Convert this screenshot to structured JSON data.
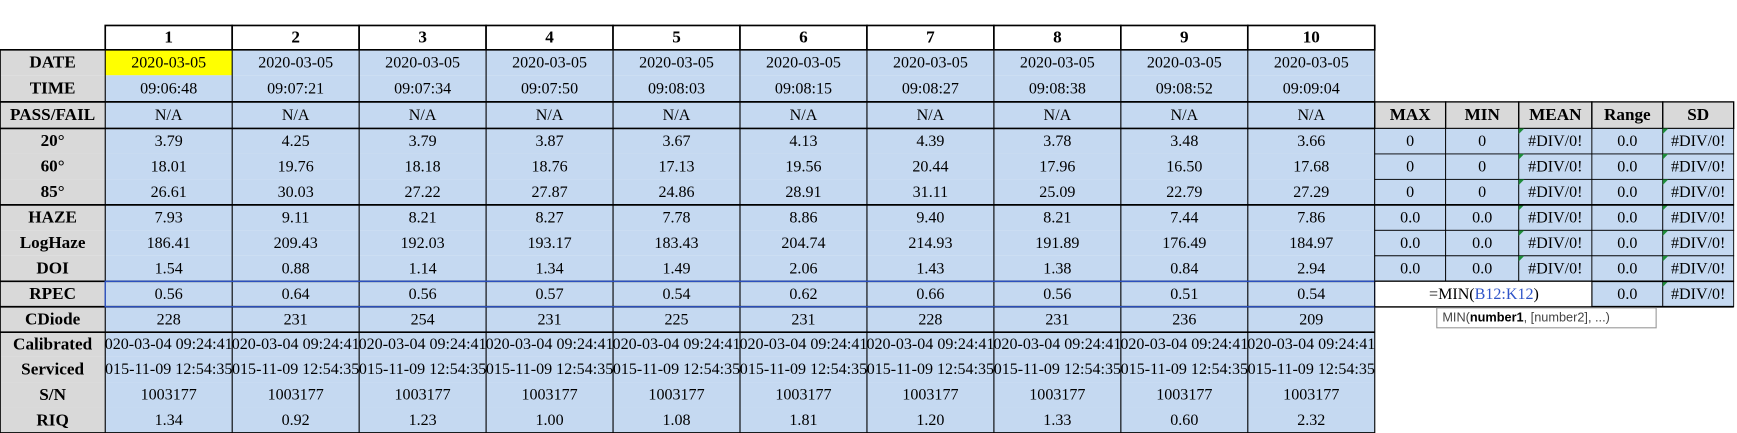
{
  "columns": [
    "1",
    "2",
    "3",
    "4",
    "5",
    "6",
    "7",
    "8",
    "9",
    "10"
  ],
  "rows": [
    {
      "label": "DATE",
      "cells": [
        "2020-03-05",
        "2020-03-05",
        "2020-03-05",
        "2020-03-05",
        "2020-03-05",
        "2020-03-05",
        "2020-03-05",
        "2020-03-05",
        "2020-03-05",
        "2020-03-05"
      ]
    },
    {
      "label": "TIME",
      "cells": [
        "09:06:48",
        "09:07:21",
        "09:07:34",
        "09:07:50",
        "09:08:03",
        "09:08:15",
        "09:08:27",
        "09:08:38",
        "09:08:52",
        "09:09:04"
      ]
    },
    {
      "label": "PASS/FAIL",
      "cells": [
        "N/A",
        "N/A",
        "N/A",
        "N/A",
        "N/A",
        "N/A",
        "N/A",
        "N/A",
        "N/A",
        "N/A"
      ]
    },
    {
      "label": "20°",
      "cells": [
        "3.79",
        "4.25",
        "3.79",
        "3.87",
        "3.67",
        "4.13",
        "4.39",
        "3.78",
        "3.48",
        "3.66"
      ]
    },
    {
      "label": "60°",
      "cells": [
        "18.01",
        "19.76",
        "18.18",
        "18.76",
        "17.13",
        "19.56",
        "20.44",
        "17.96",
        "16.50",
        "17.68"
      ]
    },
    {
      "label": "85°",
      "cells": [
        "26.61",
        "30.03",
        "27.22",
        "27.87",
        "24.86",
        "28.91",
        "31.11",
        "25.09",
        "22.79",
        "27.29"
      ]
    },
    {
      "label": "HAZE",
      "cells": [
        "7.93",
        "9.11",
        "8.21",
        "8.27",
        "7.78",
        "8.86",
        "9.40",
        "8.21",
        "7.44",
        "7.86"
      ]
    },
    {
      "label": "LogHaze",
      "cells": [
        "186.41",
        "209.43",
        "192.03",
        "193.17",
        "183.43",
        "204.74",
        "214.93",
        "191.89",
        "176.49",
        "184.97"
      ]
    },
    {
      "label": "DOI",
      "cells": [
        "1.54",
        "0.88",
        "1.14",
        "1.34",
        "1.49",
        "2.06",
        "1.43",
        "1.38",
        "0.84",
        "2.94"
      ]
    },
    {
      "label": "RPEC",
      "cells": [
        "0.56",
        "0.64",
        "0.56",
        "0.57",
        "0.54",
        "0.62",
        "0.66",
        "0.56",
        "0.51",
        "0.54"
      ]
    },
    {
      "label": "CDiode",
      "cells": [
        "228",
        "231",
        "254",
        "231",
        "225",
        "231",
        "228",
        "231",
        "236",
        "209"
      ]
    },
    {
      "label": "Calibrated",
      "cells": [
        "020-03-04 09:24:41",
        "020-03-04 09:24:41",
        "020-03-04 09:24:41",
        "020-03-04 09:24:41",
        "020-03-04 09:24:41",
        "020-03-04 09:24:41",
        "020-03-04 09:24:41",
        "020-03-04 09:24:41",
        "020-03-04 09:24:41",
        "020-03-04 09:24:41"
      ]
    },
    {
      "label": "Serviced",
      "cells": [
        "015-11-09 12:54:35",
        "015-11-09 12:54:35",
        "015-11-09 12:54:35",
        "015-11-09 12:54:35",
        "015-11-09 12:54:35",
        "015-11-09 12:54:35",
        "015-11-09 12:54:35",
        "015-11-09 12:54:35",
        "015-11-09 12:54:35",
        "015-11-09 12:54:35"
      ]
    },
    {
      "label": "S/N",
      "cells": [
        "1003177",
        "1003177",
        "1003177",
        "1003177",
        "1003177",
        "1003177",
        "1003177",
        "1003177",
        "1003177",
        "1003177"
      ]
    },
    {
      "label": "RIQ",
      "cells": [
        "1.34",
        "0.92",
        "1.23",
        "1.00",
        "1.08",
        "1.81",
        "1.20",
        "1.33",
        "0.60",
        "2.32"
      ]
    }
  ],
  "stats": {
    "headers": [
      "MAX",
      "MIN",
      "MEAN",
      "Range",
      "SD"
    ],
    "rows": [
      [
        "0",
        "0",
        "#DIV/0!",
        "0.0",
        "#DIV/0!"
      ],
      [
        "0",
        "0",
        "#DIV/0!",
        "0.0",
        "#DIV/0!"
      ],
      [
        "0",
        "0",
        "#DIV/0!",
        "0.0",
        "#DIV/0!"
      ],
      [
        "0.0",
        "0.0",
        "#DIV/0!",
        "0.0",
        "#DIV/0!"
      ],
      [
        "0.0",
        "0.0",
        "#DIV/0!",
        "0.0",
        "#DIV/0!"
      ],
      [
        "0.0",
        "0.0",
        "#DIV/0!",
        "0.0",
        "#DIV/0!"
      ],
      [
        null,
        null,
        null,
        "0.0",
        "#DIV/0!"
      ]
    ]
  },
  "formula": [
    "=MIN(",
    "B12:K12",
    ")"
  ],
  "tooltip": [
    "MIN(",
    "number1",
    ", [number2], ...)"
  ]
}
